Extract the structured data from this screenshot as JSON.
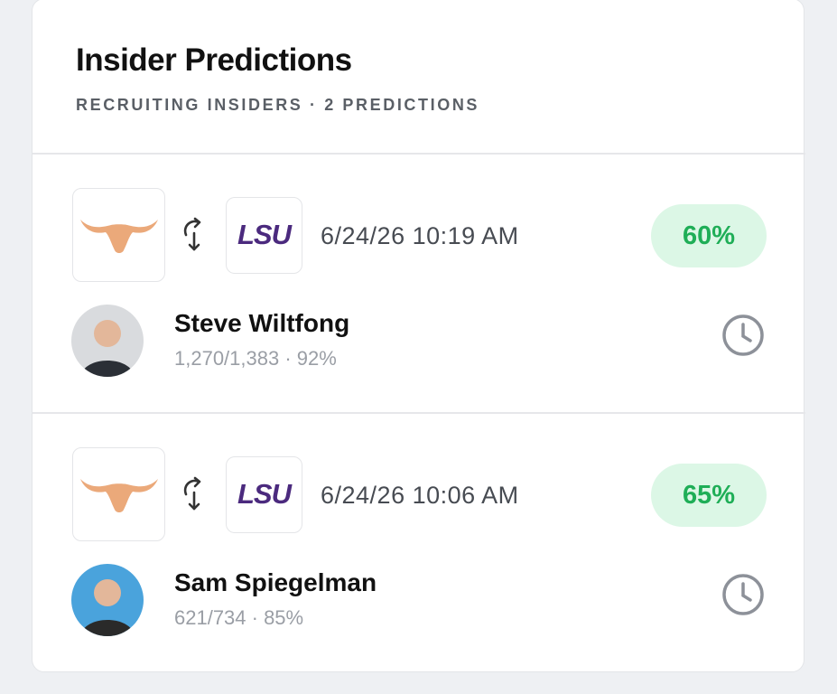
{
  "header": {
    "title": "Insider Predictions",
    "subtitle": "RECRUITING INSIDERS · 2 PREDICTIONS"
  },
  "predictions": [
    {
      "to_team": "LSU",
      "timestamp": "6/24/26 10:19 AM",
      "confidence": "60%",
      "insider": "Steve Wiltfong",
      "record": "1,270/1,383 · 92%"
    },
    {
      "to_team": "LSU",
      "timestamp": "6/24/26 10:06 AM",
      "confidence": "65%",
      "insider": "Sam Spiegelman",
      "record": "621/734 · 85%"
    }
  ]
}
